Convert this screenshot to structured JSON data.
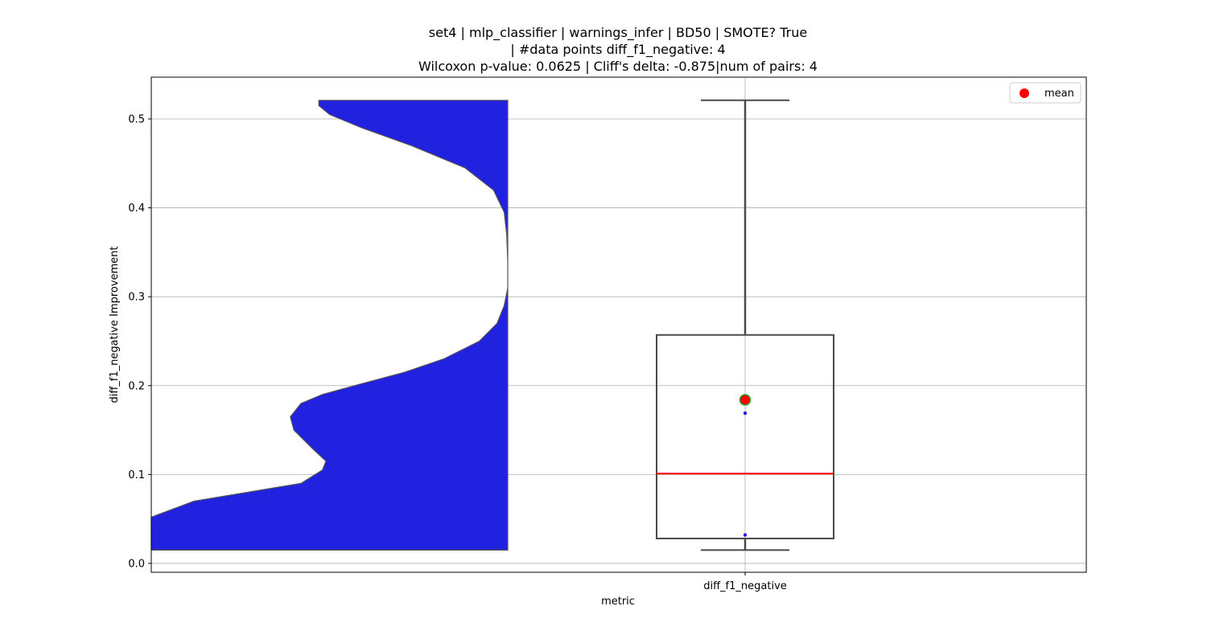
{
  "chart_data": {
    "type": "violin+box",
    "title_lines": [
      "set4 | mlp_classifier | warnings_infer | BD50 | SMOTE? True",
      "| #data points diff_f1_negative: 4",
      "Wilcoxon p-value: 0.0625 | Cliff's delta: -0.875|num of pairs: 4"
    ],
    "xlabel": "metric",
    "ylabel": "diff_f1_negative Improvement",
    "categories": [
      "diff_f1_negative"
    ],
    "ylim": [
      -0.01,
      0.547
    ],
    "y_ticks": [
      0.0,
      0.1,
      0.2,
      0.3,
      0.4,
      0.5
    ],
    "y_tick_labels": [
      "0.0",
      "0.1",
      "0.2",
      "0.3",
      "0.4",
      "0.5"
    ],
    "grid": true,
    "legend": {
      "position": "top-right",
      "label": "mean",
      "color": "#ff0000"
    },
    "violin": {
      "fill_color": "#2121e0",
      "edge_color": "#555555",
      "min": 0.015,
      "max": 0.521,
      "density_profile": [
        [
          0.015,
          1.0
        ],
        [
          0.03,
          1.0
        ],
        [
          0.052,
          1.0
        ],
        [
          0.07,
          0.88
        ],
        [
          0.09,
          0.58
        ],
        [
          0.105,
          0.52
        ],
        [
          0.115,
          0.51
        ],
        [
          0.13,
          0.55
        ],
        [
          0.15,
          0.6
        ],
        [
          0.165,
          0.61
        ],
        [
          0.18,
          0.58
        ],
        [
          0.19,
          0.52
        ],
        [
          0.2,
          0.43
        ],
        [
          0.215,
          0.29
        ],
        [
          0.23,
          0.18
        ],
        [
          0.25,
          0.08
        ],
        [
          0.27,
          0.03
        ],
        [
          0.29,
          0.01
        ],
        [
          0.31,
          0.0
        ],
        [
          0.34,
          0.0
        ],
        [
          0.37,
          0.003
        ],
        [
          0.395,
          0.01
        ],
        [
          0.42,
          0.04
        ],
        [
          0.445,
          0.12
        ],
        [
          0.47,
          0.27
        ],
        [
          0.49,
          0.41
        ],
        [
          0.505,
          0.5
        ],
        [
          0.515,
          0.53
        ],
        [
          0.521,
          0.53
        ]
      ]
    },
    "box": {
      "whisker_low": 0.015,
      "q1": 0.028,
      "median": 0.101,
      "q3": 0.257,
      "whisker_high": 0.521,
      "mean": 0.184,
      "box_edge_color": "#4a4a4a",
      "median_color": "#ff0000",
      "mean_fill": "#ff0000",
      "mean_edge": "#2ca02c"
    },
    "points": {
      "color": "#1f1fdd",
      "values": [
        0.032,
        0.169
      ]
    }
  }
}
